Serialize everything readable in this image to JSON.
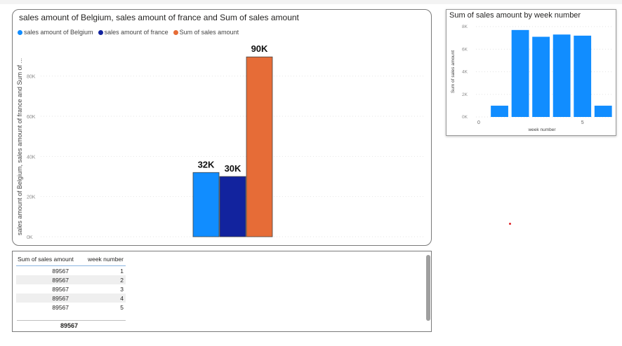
{
  "chart1": {
    "title": "sales amount of Belgium, sales amount of france and Sum of sales amount",
    "ylabel": "sales amount of Belgium, sales amount of france and Sum of ...",
    "legend": [
      {
        "label": "sales amount of Belgium",
        "color": "#118DFF"
      },
      {
        "label": "sales amount of france",
        "color": "#12239E"
      },
      {
        "label": "Sum of sales amount",
        "color": "#E66C37"
      }
    ]
  },
  "chart2": {
    "title": "Sum of sales amount by week number",
    "xlabel": "week number",
    "ylabel": "Sum of sales amount"
  },
  "chart_data": [
    {
      "type": "bar",
      "title": "sales amount of Belgium, sales amount of france and Sum of sales amount",
      "xlabel": "",
      "ylabel": "sales amount of Belgium, sales amount of france and Sum of ...",
      "ylim": [
        0,
        90000
      ],
      "yticks": [
        0,
        20000,
        40000,
        60000,
        80000
      ],
      "ytick_labels": [
        "0K",
        "20K",
        "40K",
        "60K",
        "80K"
      ],
      "grid": true,
      "legend": "top-left",
      "series": [
        {
          "name": "sales amount of Belgium",
          "color": "#118DFF",
          "values": [
            32000
          ],
          "label": "32K"
        },
        {
          "name": "sales amount of france",
          "color": "#12239E",
          "values": [
            30000
          ],
          "label": "30K"
        },
        {
          "name": "Sum of sales amount",
          "color": "#E66C37",
          "values": [
            89567
          ],
          "label": "90K"
        }
      ]
    },
    {
      "type": "bar",
      "title": "Sum of sales amount by week number",
      "xlabel": "week number",
      "ylabel": "Sum of sales amount",
      "x": [
        1,
        2,
        3,
        4,
        5,
        6
      ],
      "values": [
        1000,
        7700,
        7100,
        7300,
        7200,
        1000
      ],
      "color": "#118DFF",
      "xlim": [
        0,
        6.5
      ],
      "xticks": [
        0,
        5
      ],
      "ylim": [
        0,
        8000
      ],
      "yticks": [
        0,
        2000,
        4000,
        6000,
        8000
      ],
      "ytick_labels": [
        "0K",
        "2K",
        "4K",
        "6K",
        "8K"
      ],
      "grid": true
    }
  ],
  "table": {
    "headers": [
      "Sum of sales amount",
      "week number"
    ],
    "rows": [
      {
        "amount": "89567",
        "week": "1"
      },
      {
        "amount": "89567",
        "week": "2"
      },
      {
        "amount": "89567",
        "week": "3"
      },
      {
        "amount": "89567",
        "week": "4"
      },
      {
        "amount": "89567",
        "week": "5"
      }
    ],
    "total": "89567"
  }
}
